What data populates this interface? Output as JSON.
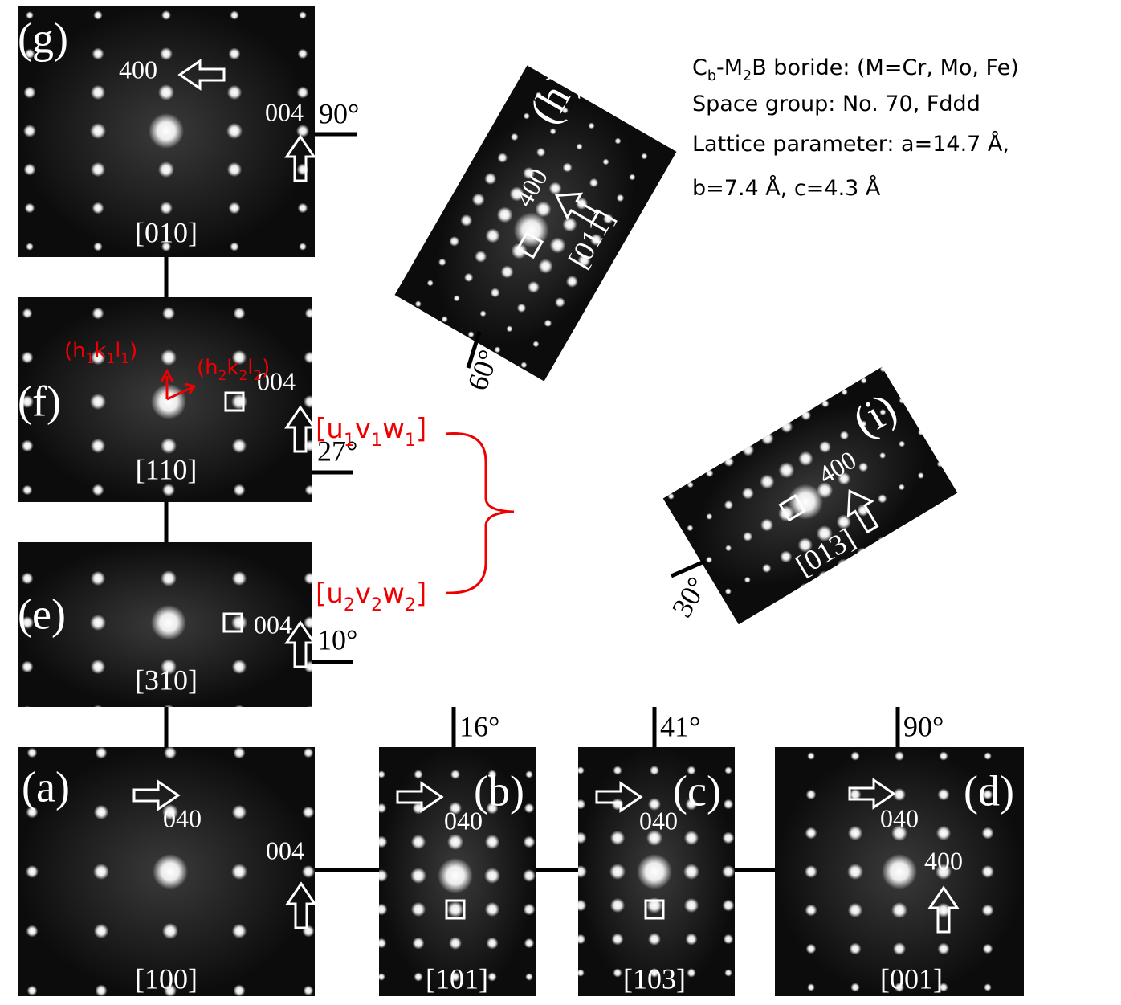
{
  "info": {
    "lines": [
      [
        "C",
        "b",
        "-M",
        "2",
        "B boride: (M=Cr, Mo, Fe)"
      ],
      [
        "Space group: No. 70, Fddd"
      ],
      [
        "Lattice parameter: a=14.7 Å,"
      ],
      [
        "b=7.4 Å, c=4.3 Å"
      ]
    ]
  },
  "annotations": {
    "plane1": [
      "(h",
      "1",
      "k",
      "1",
      "l",
      "1",
      ")"
    ],
    "plane2": [
      "(h",
      "2",
      "k",
      "2",
      "l",
      "2",
      ")"
    ],
    "axis1": [
      "[u",
      "1",
      "v",
      "1",
      "w",
      "1",
      "]"
    ],
    "axis2": [
      "[u",
      "2",
      "v",
      "2",
      "w",
      "2",
      "]"
    ]
  },
  "panels": [
    {
      "label": "(a)",
      "zone": "[100]",
      "spots": [
        "040",
        "004"
      ]
    },
    {
      "label": "(b)",
      "zone": "[101]",
      "spots": [
        "040"
      ],
      "angle": "16°"
    },
    {
      "label": "(c)",
      "zone": "[103]",
      "spots": [
        "040"
      ],
      "angle": "41°"
    },
    {
      "label": "(d)",
      "zone": "[001]",
      "spots": [
        "040",
        "400"
      ],
      "angle": "90°"
    },
    {
      "label": "(e)",
      "zone": "[310]",
      "spots": [
        "004"
      ],
      "angle": "10°"
    },
    {
      "label": "(f)",
      "zone": "[110]",
      "spots": [
        "004"
      ],
      "angle": "27°"
    },
    {
      "label": "(g)",
      "zone": "[010]",
      "spots": [
        "400",
        "004"
      ],
      "angle": "90°"
    },
    {
      "label": "(h)",
      "zone": "[011]",
      "spots": [
        "400"
      ],
      "angle": "60°"
    },
    {
      "label": "(i)",
      "zone": "[013]",
      "spots": [
        "400"
      ],
      "angle": "30°"
    }
  ]
}
